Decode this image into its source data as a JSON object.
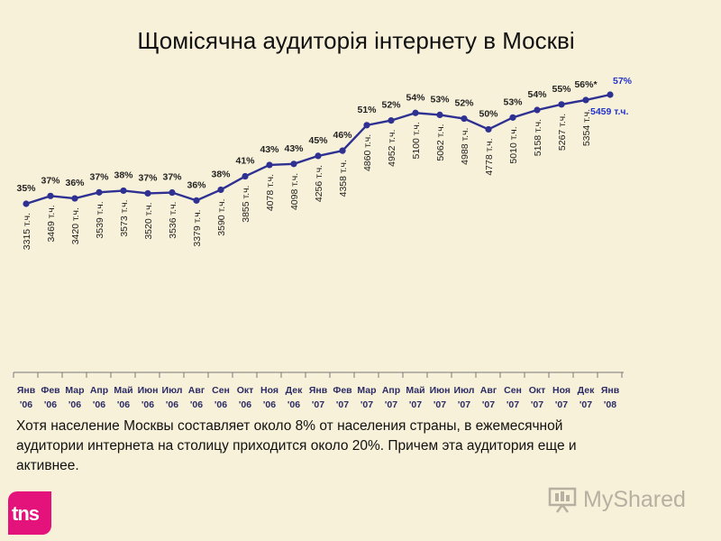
{
  "title": "Щомісячна аудиторія інтернету в Москві",
  "note": "Хотя население Москвы составляет около 8% от населения страны, в ежемесячной аудитории интернета на столицу приходится около 20%. Причем эта аудитория еще и активнее.",
  "logo": {
    "text": "tns"
  },
  "watermark": {
    "text": "MyShared"
  },
  "colors": {
    "background": "#f8f1d9",
    "line": "#2e3192",
    "last_label": "#2233cc",
    "logo": "#e4127b"
  },
  "chart_data": {
    "type": "line",
    "x_months": [
      "Янв",
      "Фев",
      "Мар",
      "Апр",
      "Май",
      "Июн",
      "Июл",
      "Авг",
      "Сен",
      "Окт",
      "Ноя",
      "Дек",
      "Янв",
      "Фев",
      "Мар",
      "Апр",
      "Май",
      "Июн",
      "Июл",
      "Авг",
      "Сен",
      "Окт",
      "Ноя",
      "Дек",
      "Янв"
    ],
    "x_years": [
      "'06",
      "'06",
      "'06",
      "'06",
      "'06",
      "'06",
      "'06",
      "'06",
      "'06",
      "'06",
      "'06",
      "'06",
      "'07",
      "'07",
      "'07",
      "'07",
      "'07",
      "'07",
      "'07",
      "'07",
      "'07",
      "'07",
      "'07",
      "'07",
      "'08"
    ],
    "percent_labels": [
      "35%",
      "37%",
      "36%",
      "37%",
      "38%",
      "37%",
      "37%",
      "36%",
      "38%",
      "41%",
      "43%",
      "43%",
      "45%",
      "46%",
      "51%",
      "52%",
      "54%",
      "53%",
      "52%",
      "50%",
      "53%",
      "54%",
      "55%",
      "56%*",
      "57%"
    ],
    "audience_labels": [
      "3315 т.ч.",
      "3469 т.ч.",
      "3420 т.ч.",
      "3539 т.ч.",
      "3573 т.ч.",
      "3520 т.ч.",
      "3536 т.ч.",
      "3379 т.ч.",
      "3590 т.ч.",
      "3855 т.ч.",
      "4078 т.ч.",
      "4098 т.ч.",
      "4256 т.ч.",
      "4358 т.ч.",
      "4860 т.ч.",
      "4952 т.ч.",
      "5100 т.ч.",
      "5062 т.ч.",
      "4988 т.ч.",
      "4778 т.ч.",
      "5010 т.ч.",
      "5158 т.ч.",
      "5267 т.ч.",
      "5354 т.ч.",
      "5459 т.ч."
    ],
    "values": [
      3315,
      3469,
      3420,
      3539,
      3573,
      3520,
      3536,
      3379,
      3590,
      3855,
      4078,
      4098,
      4256,
      4358,
      4860,
      4952,
      5100,
      5062,
      4988,
      4778,
      5010,
      5158,
      5267,
      5354,
      5459
    ],
    "unit": "т.ч."
  }
}
